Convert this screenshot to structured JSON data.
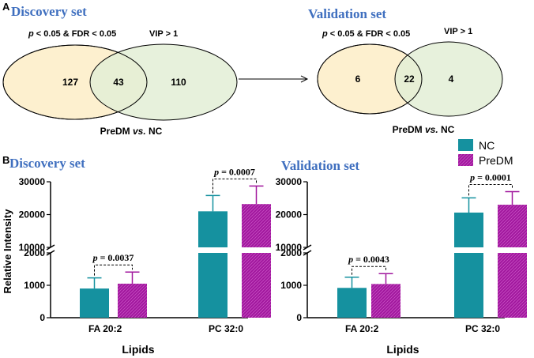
{
  "panel_a": {
    "letter": "A",
    "venns": [
      {
        "title": "Discovery set",
        "left_label_p": "p",
        "left_label_rest": " < 0.05 & FDR < 0.05",
        "right_label": "VIP > 1",
        "left_only": "127",
        "overlap": "43",
        "right_only": "110",
        "comparison_bold": "PreDM ",
        "comparison_italic": "vs.",
        "comparison_end": " NC"
      },
      {
        "title": "Validation set",
        "left_label_p": "p",
        "left_label_rest": " < 0.05 & FDR < 0.05",
        "right_label": "VIP > 1",
        "left_only": "6",
        "overlap": "22",
        "right_only": "4",
        "comparison_bold": "PreDM ",
        "comparison_italic": "vs.",
        "comparison_end": " NC"
      }
    ],
    "colors": {
      "left_fill": "#fdf0cf",
      "right_fill": "#e3efd6",
      "overlap_fill": "#e6ecc7"
    }
  },
  "panel_b": {
    "letter": "B"
  },
  "legend": {
    "items": [
      {
        "label": "NC",
        "color": "#15919f"
      },
      {
        "label": "PreDM",
        "color": "#a0169d"
      }
    ]
  },
  "chart_data": [
    {
      "type": "bar",
      "title": "Discovery set",
      "categories": [
        "FA 20:2",
        "PC 32:0"
      ],
      "series": [
        {
          "name": "NC",
          "values": [
            900,
            21000
          ],
          "errors": [
            330,
            4800
          ]
        },
        {
          "name": "PreDM",
          "values": [
            1050,
            23200
          ],
          "errors": [
            360,
            5500
          ]
        }
      ],
      "ylabel": "Relative Intensity",
      "xlabel": "Lipids",
      "y_break": true,
      "lower_ylim": [
        0,
        2000
      ],
      "upper_ylim": [
        10000,
        30000
      ],
      "lower_ticks": [
        0,
        1000,
        2000
      ],
      "upper_ticks": [
        10000,
        20000,
        30000
      ],
      "annotations": [
        {
          "category": "FA 20:2",
          "p_italic": "p",
          "p_rest": " = 0.0037"
        },
        {
          "category": "PC 32:0",
          "p_italic": "p",
          "p_rest": " = 0.0007"
        }
      ]
    },
    {
      "type": "bar",
      "title": "Validation set",
      "categories": [
        "FA 20:2",
        "PC 32:0"
      ],
      "series": [
        {
          "name": "NC",
          "values": [
            920,
            20600
          ],
          "errors": [
            330,
            4500
          ]
        },
        {
          "name": "PreDM",
          "values": [
            1040,
            23000
          ],
          "errors": [
            320,
            4000
          ]
        }
      ],
      "ylabel": "",
      "xlabel": "Lipids",
      "y_break": true,
      "lower_ylim": [
        0,
        2000
      ],
      "upper_ylim": [
        10000,
        30000
      ],
      "lower_ticks": [
        0,
        1000,
        2000
      ],
      "upper_ticks": [
        10000,
        20000,
        30000
      ],
      "annotations": [
        {
          "category": "FA 20:2",
          "p_italic": "p",
          "p_rest": " = 0.0043"
        },
        {
          "category": "PC 32:0",
          "p_italic": "p",
          "p_rest": " = 0.0001"
        }
      ]
    }
  ]
}
